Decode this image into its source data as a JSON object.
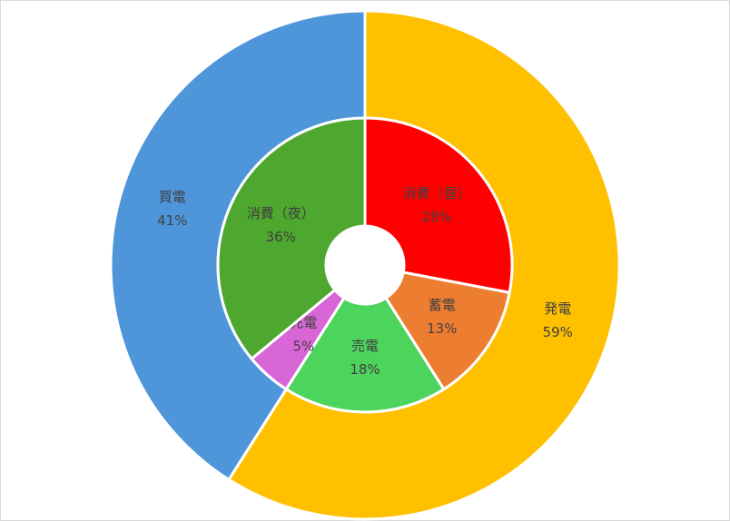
{
  "chart_data": {
    "type": "donut",
    "rings": [
      {
        "categories": [
          "発電",
          "買電"
        ],
        "values": [
          59,
          41
        ],
        "value_labels": [
          "59%",
          "41%"
        ],
        "colors": [
          "#ffc000",
          "#4e95d9"
        ]
      },
      {
        "categories": [
          "消費（昼）",
          "蓄電",
          "売電",
          "充電",
          "消費（夜）"
        ],
        "values": [
          28,
          13,
          18,
          5,
          36
        ],
        "value_labels": [
          "28%",
          "13%",
          "18%",
          "5%",
          "36%"
        ],
        "colors": [
          "#ff0000",
          "#ed7d31",
          "#4cd45c",
          "#d966d6",
          "#4ea72e"
        ]
      }
    ]
  }
}
